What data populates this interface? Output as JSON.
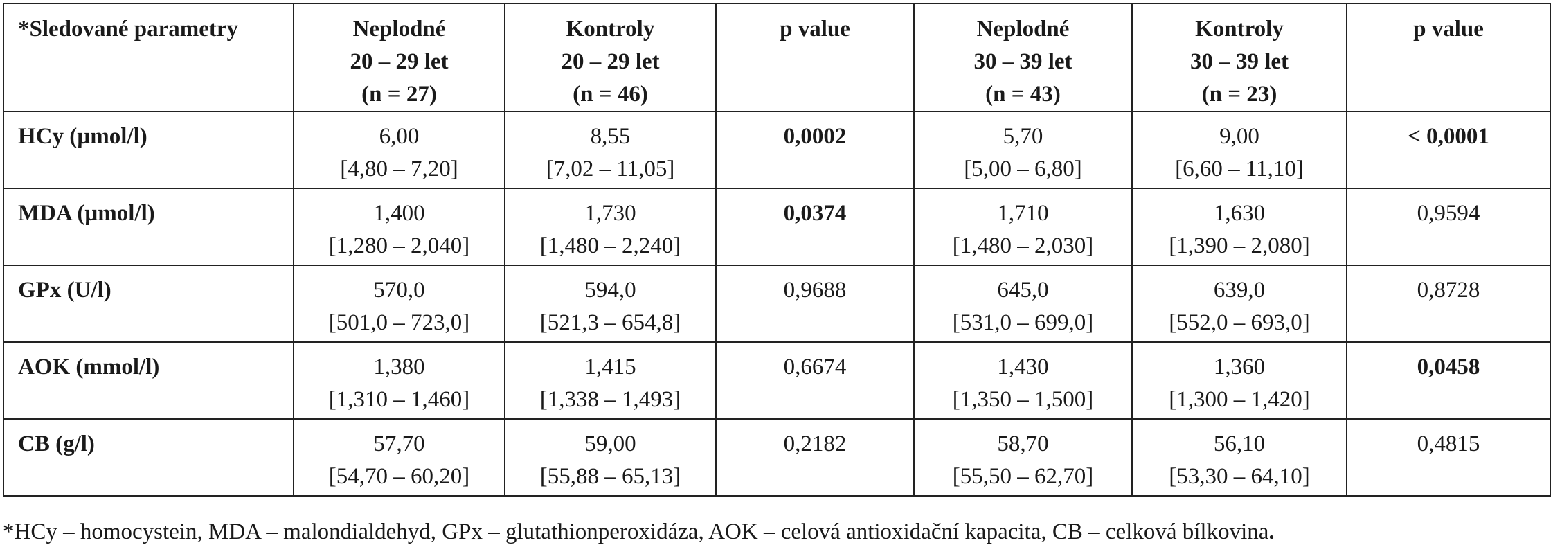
{
  "table": {
    "header": {
      "param": "*Sledované parametry",
      "col1": [
        "Neplodné",
        "20 – 29 let",
        "(n = 27)"
      ],
      "col2": [
        "Kontroly",
        "20 – 29 let",
        "(n = 46)"
      ],
      "col3": "p value",
      "col4": [
        "Neplodné",
        "30 – 39 let",
        "(n = 43)"
      ],
      "col5": [
        "Kontroly",
        "30 – 39 let",
        "(n = 23)"
      ],
      "col6": "p value"
    },
    "rows": [
      {
        "label": "HCy (µmol/l)",
        "c1": [
          "6,00",
          "[4,80 – 7,20]"
        ],
        "c2": [
          "8,55",
          "[7,02 – 11,05]"
        ],
        "p1": "0,0002",
        "p1_bold": true,
        "c4": [
          "5,70",
          "[5,00 – 6,80]"
        ],
        "c5": [
          "9,00",
          "[6,60 – 11,10]"
        ],
        "p2": "< 0,0001",
        "p2_bold": true
      },
      {
        "label": "MDA (µmol/l)",
        "c1": [
          "1,400",
          "[1,280 – 2,040]"
        ],
        "c2": [
          "1,730",
          "[1,480 – 2,240]"
        ],
        "p1": "0,0374",
        "p1_bold": true,
        "c4": [
          "1,710",
          "[1,480 – 2,030]"
        ],
        "c5": [
          "1,630",
          "[1,390 – 2,080]"
        ],
        "p2": "0,9594",
        "p2_bold": false
      },
      {
        "label": "GPx (U/l)",
        "c1": [
          "570,0",
          "[501,0 – 723,0]"
        ],
        "c2": [
          "594,0",
          "[521,3 – 654,8]"
        ],
        "p1": "0,9688",
        "p1_bold": false,
        "c4": [
          "645,0",
          "[531,0 – 699,0]"
        ],
        "c5": [
          "639,0",
          "[552,0 – 693,0]"
        ],
        "p2": "0,8728",
        "p2_bold": false
      },
      {
        "label": "AOK (mmol/l)",
        "c1": [
          "1,380",
          "[1,310 – 1,460]"
        ],
        "c2": [
          "1,415",
          "[1,338 – 1,493]"
        ],
        "p1": "0,6674",
        "p1_bold": false,
        "c4": [
          "1,430",
          "[1,350 – 1,500]"
        ],
        "c5": [
          "1,360",
          "[1,300 – 1,420]"
        ],
        "p2": "0,0458",
        "p2_bold": true
      },
      {
        "label": "CB (g/l)",
        "c1": [
          "57,70",
          "[54,70 – 60,20]"
        ],
        "c2": [
          "59,00",
          "[55,88 – 65,13]"
        ],
        "p1": "0,2182",
        "p1_bold": false,
        "c4": [
          "58,70",
          "[55,50 – 62,70]"
        ],
        "c5": [
          "56,10",
          "[53,30 – 64,10]"
        ],
        "p2": "0,4815",
        "p2_bold": false
      }
    ]
  },
  "footnote": {
    "text": "*HCy – homocystein, MDA – malondialdehyd, GPx – glutathionperoxidáza, AOK – celová antioxidační kapacita, CB – celková bílkovina",
    "end": "."
  }
}
